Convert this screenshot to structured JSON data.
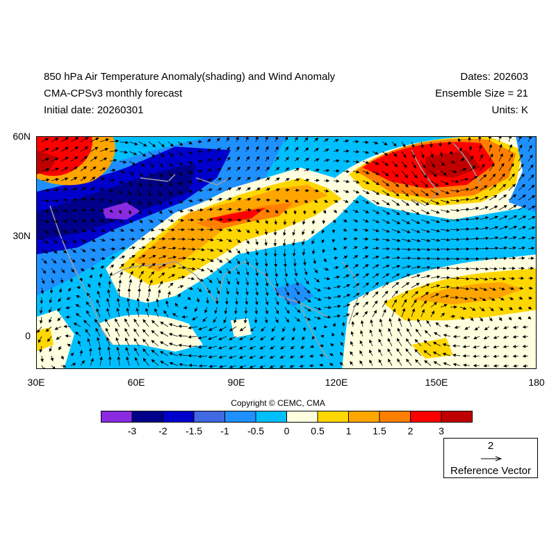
{
  "header": {
    "title": "850 hPa Air Temperature Anomaly(shading) and Wind Anomaly",
    "model": "CMA-CPSv3 monthly forecast",
    "initial_date": "Initial date: 20260301",
    "dates": "Dates: 202603",
    "ensemble": "Ensemble Size = 21",
    "units": "Units: K"
  },
  "map": {
    "lat_labels": [
      "60N",
      "30N",
      "0"
    ],
    "lon_labels": [
      "30E",
      "60E",
      "90E",
      "120E",
      "150E",
      "180"
    ],
    "lat_range": [
      -10,
      60
    ],
    "lon_range": [
      30,
      180
    ]
  },
  "copyright": "Copyright © CEMC, CMA",
  "colorbar": {
    "colors": [
      "#8a2be2",
      "#00008b",
      "#0000cd",
      "#4169e1",
      "#1e90ff",
      "#00bfff",
      "#ffffe0",
      "#ffd700",
      "#ffa500",
      "#ff7f00",
      "#ff0000",
      "#c00000"
    ],
    "labels": [
      "-3",
      "-2",
      "-1.5",
      "-1",
      "-0.5",
      "0",
      "0.5",
      "1",
      "1.5",
      "2",
      "3"
    ]
  },
  "reference_vector": {
    "value": "2",
    "label": "Reference Vector"
  }
}
